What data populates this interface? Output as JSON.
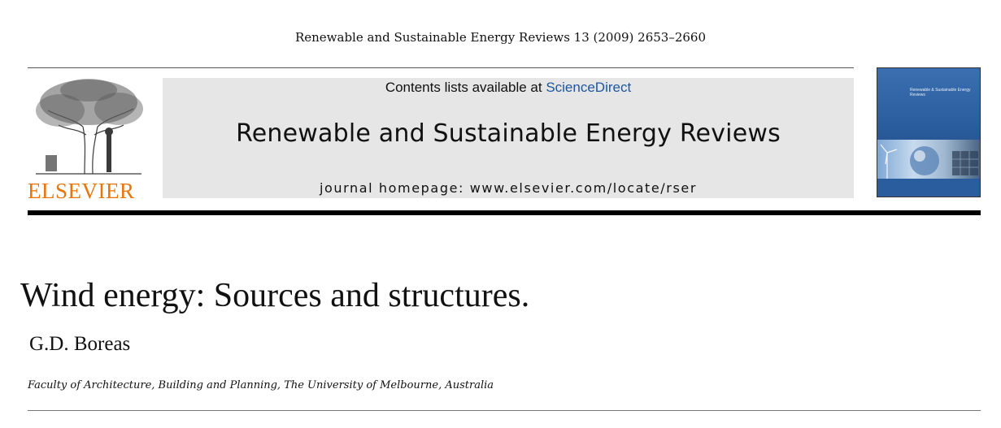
{
  "header": {
    "citation": "Renewable and Sustainable Energy Reviews 13 (2009) 2653–2660"
  },
  "publisher": {
    "name": "ELSEVIER",
    "brand_color": "#e8750a",
    "logo_icon": "tree-of-knowledge-icon"
  },
  "journal_banner": {
    "contents_prefix": "Contents lists available at ",
    "contents_link": "ScienceDirect",
    "journal_title": "Renewable and Sustainable Energy Reviews",
    "homepage": "journal homepage: www.elsevier.com/locate/rser",
    "link_color": "#1e56a0"
  },
  "cover": {
    "title_text": "Renewable & Sustainable Energy Reviews"
  },
  "article": {
    "title": "Wind energy: Sources and structures.",
    "author": "G.D. Boreas",
    "affiliation": "Faculty of Architecture, Building and Planning, The University of Melbourne, Australia"
  }
}
